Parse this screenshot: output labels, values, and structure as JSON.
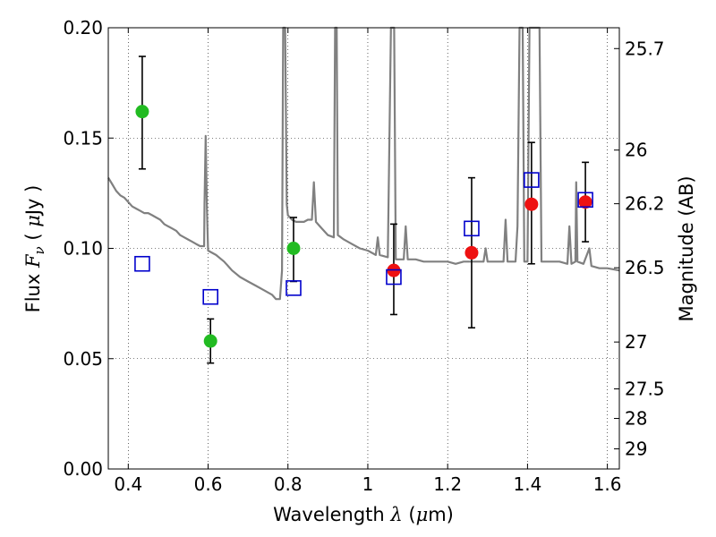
{
  "chart_data": {
    "type": "scatter",
    "xlabel": "Wavelength  λ (μm)",
    "xlabel_parts": {
      "pre": "Wavelength  ",
      "sym": "λ",
      "mid": " (",
      "unit": "μ",
      "post": "m)"
    },
    "ylabel": "Flux  F_ν  ( μJy )",
    "ylabel_parts": {
      "pre": "Flux  ",
      "sym": "F",
      "sub": "ν",
      "mid": "  ( ",
      "unit": "μ",
      "post": "Jy )"
    },
    "y2label": "Magnitude (AB)",
    "xlim": [
      0.35,
      1.63
    ],
    "ylim": [
      0.0,
      0.2
    ],
    "grid": true,
    "x_ticks": [
      {
        "value": 0.4,
        "label": "0.4"
      },
      {
        "value": 0.6,
        "label": "0.6"
      },
      {
        "value": 0.8,
        "label": "0.8"
      },
      {
        "value": 1.0,
        "label": "1"
      },
      {
        "value": 1.2,
        "label": "1.2"
      },
      {
        "value": 1.4,
        "label": "1.4"
      },
      {
        "value": 1.6,
        "label": "1.6"
      }
    ],
    "y_ticks": [
      {
        "value": 0.0,
        "label": "0.00"
      },
      {
        "value": 0.05,
        "label": "0.05"
      },
      {
        "value": 0.1,
        "label": "0.10"
      },
      {
        "value": 0.15,
        "label": "0.15"
      },
      {
        "value": 0.2,
        "label": "0.20"
      }
    ],
    "mag_ticks": [
      {
        "mag": 25.7,
        "label": "25.7"
      },
      {
        "mag": 26,
        "label": "26"
      },
      {
        "mag": 26.2,
        "label": "26.2"
      },
      {
        "mag": 26.5,
        "label": "26.5"
      },
      {
        "mag": 27,
        "label": "27"
      },
      {
        "mag": 27.5,
        "label": "27.5"
      },
      {
        "mag": 28,
        "label": "28"
      },
      {
        "mag": 29,
        "label": "29"
      }
    ],
    "series": [
      {
        "marker": "filled-circle",
        "color": "#22bb22",
        "points": [
          {
            "x": 0.435,
            "y": 0.162,
            "err_lo": 0.026,
            "err_hi": 0.025
          },
          {
            "x": 0.606,
            "y": 0.058,
            "err_lo": 0.01,
            "err_hi": 0.01
          },
          {
            "x": 0.814,
            "y": 0.1,
            "err_lo": 0.015,
            "err_hi": 0.014
          }
        ]
      },
      {
        "marker": "filled-circle",
        "color": "#ee1111",
        "points": [
          {
            "x": 1.065,
            "y": 0.09,
            "err_lo": 0.02,
            "err_hi": 0.021
          },
          {
            "x": 1.26,
            "y": 0.098,
            "err_lo": 0.034,
            "err_hi": 0.034
          },
          {
            "x": 1.41,
            "y": 0.12,
            "err_lo": 0.027,
            "err_hi": 0.028
          },
          {
            "x": 1.545,
            "y": 0.121,
            "err_lo": 0.018,
            "err_hi": 0.018
          }
        ]
      },
      {
        "marker": "open-square",
        "color": "#0000cc",
        "points": [
          {
            "x": 0.435,
            "y": 0.093
          },
          {
            "x": 0.606,
            "y": 0.078
          },
          {
            "x": 0.814,
            "y": 0.082
          },
          {
            "x": 1.065,
            "y": 0.087
          },
          {
            "x": 1.26,
            "y": 0.109
          },
          {
            "x": 1.41,
            "y": 0.131
          },
          {
            "x": 1.545,
            "y": 0.122
          }
        ]
      }
    ],
    "model_spectrum": {
      "color": "#808080",
      "points": [
        [
          0.35,
          0.132
        ],
        [
          0.36,
          0.129
        ],
        [
          0.37,
          0.126
        ],
        [
          0.38,
          0.124
        ],
        [
          0.39,
          0.123
        ],
        [
          0.4,
          0.121
        ],
        [
          0.41,
          0.119
        ],
        [
          0.42,
          0.118
        ],
        [
          0.43,
          0.117
        ],
        [
          0.44,
          0.116
        ],
        [
          0.45,
          0.116
        ],
        [
          0.46,
          0.115
        ],
        [
          0.47,
          0.114
        ],
        [
          0.48,
          0.113
        ],
        [
          0.49,
          0.111
        ],
        [
          0.5,
          0.11
        ],
        [
          0.51,
          0.109
        ],
        [
          0.52,
          0.108
        ],
        [
          0.53,
          0.106
        ],
        [
          0.54,
          0.105
        ],
        [
          0.55,
          0.104
        ],
        [
          0.56,
          0.103
        ],
        [
          0.57,
          0.102
        ],
        [
          0.58,
          0.101
        ],
        [
          0.59,
          0.101
        ],
        [
          0.591,
          0.12
        ],
        [
          0.594,
          0.151
        ],
        [
          0.597,
          0.118
        ],
        [
          0.6,
          0.099
        ],
        [
          0.62,
          0.097
        ],
        [
          0.64,
          0.094
        ],
        [
          0.66,
          0.09
        ],
        [
          0.68,
          0.087
        ],
        [
          0.7,
          0.085
        ],
        [
          0.72,
          0.083
        ],
        [
          0.74,
          0.081
        ],
        [
          0.76,
          0.079
        ],
        [
          0.77,
          0.077
        ],
        [
          0.78,
          0.077
        ],
        [
          0.785,
          0.09
        ],
        [
          0.788,
          0.2
        ],
        [
          0.793,
          0.2
        ],
        [
          0.797,
          0.12
        ],
        [
          0.8,
          0.115
        ],
        [
          0.81,
          0.113
        ],
        [
          0.82,
          0.112
        ],
        [
          0.83,
          0.112
        ],
        [
          0.84,
          0.112
        ],
        [
          0.85,
          0.113
        ],
        [
          0.86,
          0.113
        ],
        [
          0.865,
          0.13
        ],
        [
          0.87,
          0.112
        ],
        [
          0.88,
          0.11
        ],
        [
          0.9,
          0.106
        ],
        [
          0.915,
          0.105
        ],
        [
          0.918,
          0.2
        ],
        [
          0.922,
          0.2
        ],
        [
          0.925,
          0.106
        ],
        [
          0.94,
          0.104
        ],
        [
          0.96,
          0.102
        ],
        [
          0.98,
          0.1
        ],
        [
          1.0,
          0.099
        ],
        [
          1.02,
          0.097
        ],
        [
          1.025,
          0.105
        ],
        [
          1.03,
          0.097
        ],
        [
          1.05,
          0.096
        ],
        [
          1.058,
          0.2
        ],
        [
          1.066,
          0.2
        ],
        [
          1.07,
          0.095
        ],
        [
          1.09,
          0.095
        ],
        [
          1.095,
          0.11
        ],
        [
          1.1,
          0.095
        ],
        [
          1.12,
          0.095
        ],
        [
          1.14,
          0.094
        ],
        [
          1.16,
          0.094
        ],
        [
          1.18,
          0.094
        ],
        [
          1.2,
          0.094
        ],
        [
          1.22,
          0.093
        ],
        [
          1.24,
          0.094
        ],
        [
          1.26,
          0.094
        ],
        [
          1.28,
          0.094
        ],
        [
          1.29,
          0.094
        ],
        [
          1.295,
          0.1
        ],
        [
          1.3,
          0.094
        ],
        [
          1.32,
          0.094
        ],
        [
          1.34,
          0.094
        ],
        [
          1.345,
          0.113
        ],
        [
          1.35,
          0.094
        ],
        [
          1.37,
          0.094
        ],
        [
          1.375,
          0.11
        ],
        [
          1.38,
          0.2
        ],
        [
          1.388,
          0.2
        ],
        [
          1.392,
          0.094
        ],
        [
          1.4,
          0.094
        ],
        [
          1.405,
          0.2
        ],
        [
          1.43,
          0.2
        ],
        [
          1.435,
          0.094
        ],
        [
          1.44,
          0.094
        ],
        [
          1.46,
          0.094
        ],
        [
          1.48,
          0.094
        ],
        [
          1.5,
          0.093
        ],
        [
          1.505,
          0.11
        ],
        [
          1.51,
          0.093
        ],
        [
          1.52,
          0.094
        ],
        [
          1.522,
          0.13
        ],
        [
          1.525,
          0.094
        ],
        [
          1.54,
          0.093
        ],
        [
          1.555,
          0.1
        ],
        [
          1.56,
          0.092
        ],
        [
          1.58,
          0.091
        ],
        [
          1.6,
          0.091
        ],
        [
          1.63,
          0.09
        ]
      ]
    }
  }
}
